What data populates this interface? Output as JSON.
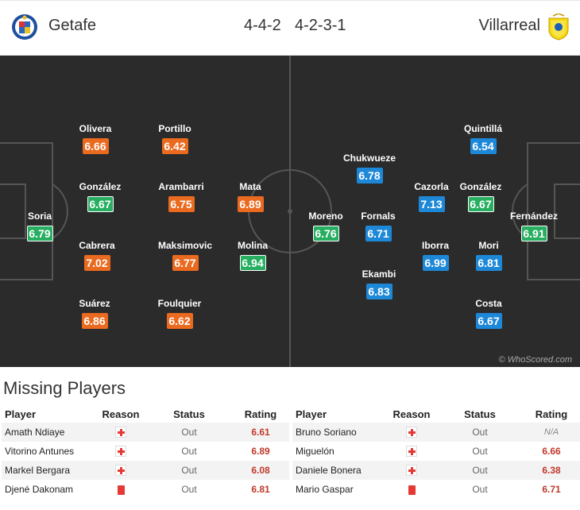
{
  "header": {
    "home_team": "Getafe",
    "away_team": "Villarreal",
    "home_formation": "4-4-2",
    "away_formation": "4-2-3-1",
    "home_crest_icon": "getafe-crest-icon",
    "away_crest_icon": "villarreal-crest-icon"
  },
  "colors": {
    "pitch": "#2b2b2b",
    "home_rating": "#ea6a1f",
    "away_rating": "#1e88d8",
    "best_rating": "#27ae60",
    "missing_rating": "#c0392b"
  },
  "home_players": [
    {
      "name": "Olivera",
      "rating": "6.66",
      "style": "orange"
    },
    {
      "name": "Portillo",
      "rating": "6.42",
      "style": "orange"
    },
    {
      "name": "González",
      "rating": "6.67",
      "style": "green"
    },
    {
      "name": "Arambarri",
      "rating": "6.75",
      "style": "orange"
    },
    {
      "name": "Mata",
      "rating": "6.89",
      "style": "orange"
    },
    {
      "name": "Soria",
      "rating": "6.79",
      "style": "green"
    },
    {
      "name": "Cabrera",
      "rating": "7.02",
      "style": "orange"
    },
    {
      "name": "Maksimovic",
      "rating": "6.77",
      "style": "orange"
    },
    {
      "name": "Molina",
      "rating": "6.94",
      "style": "green"
    },
    {
      "name": "Suárez",
      "rating": "6.86",
      "style": "orange"
    },
    {
      "name": "Foulquier",
      "rating": "6.62",
      "style": "orange"
    }
  ],
  "away_players": [
    {
      "name": "Quintillá",
      "rating": "6.54",
      "style": "blue"
    },
    {
      "name": "Chukwueze",
      "rating": "6.78",
      "style": "blue"
    },
    {
      "name": "Cazorla",
      "rating": "7.13",
      "style": "blue"
    },
    {
      "name": "González",
      "rating": "6.67",
      "style": "green"
    },
    {
      "name": "Moreno",
      "rating": "6.76",
      "style": "green"
    },
    {
      "name": "Fornals",
      "rating": "6.71",
      "style": "blue"
    },
    {
      "name": "Fernández",
      "rating": "6.91",
      "style": "green"
    },
    {
      "name": "Iborra",
      "rating": "6.99",
      "style": "blue"
    },
    {
      "name": "Mori",
      "rating": "6.81",
      "style": "blue"
    },
    {
      "name": "Ekambi",
      "rating": "6.83",
      "style": "blue"
    },
    {
      "name": "Costa",
      "rating": "6.67",
      "style": "blue"
    }
  ],
  "watermark": "© WhoScored.com",
  "missing": {
    "title": "Missing Players",
    "columns": {
      "player": "Player",
      "reason": "Reason",
      "status": "Status",
      "rating": "Rating"
    },
    "home": [
      {
        "player": "Amath Ndiaye",
        "reason": "injury-icon",
        "status": "Out",
        "rating": "6.61"
      },
      {
        "player": "Vitorino Antunes",
        "reason": "injury-icon",
        "status": "Out",
        "rating": "6.89"
      },
      {
        "player": "Markel Bergara",
        "reason": "injury-icon",
        "status": "Out",
        "rating": "6.08"
      },
      {
        "player": "Djené Dakonam",
        "reason": "red-card-icon",
        "status": "Out",
        "rating": "6.81"
      }
    ],
    "away": [
      {
        "player": "Bruno Soriano",
        "reason": "injury-icon",
        "status": "Out",
        "rating": "N/A"
      },
      {
        "player": "Miguelón",
        "reason": "injury-icon",
        "status": "Out",
        "rating": "6.66"
      },
      {
        "player": "Daniele Bonera",
        "reason": "injury-icon",
        "status": "Out",
        "rating": "6.38"
      },
      {
        "player": "Mario Gaspar",
        "reason": "red-card-icon",
        "status": "Out",
        "rating": "6.71"
      }
    ]
  }
}
